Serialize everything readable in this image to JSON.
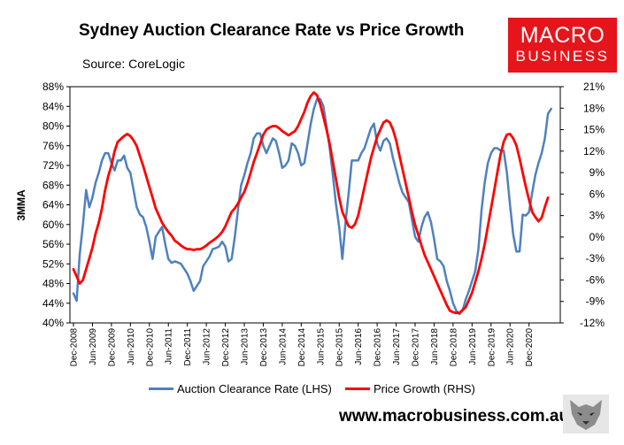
{
  "title": "Sydney Auction Clearance Rate vs Price Growth",
  "source": "Source: CoreLogic",
  "logo": {
    "line1": "MACRO",
    "line2": "BUSINESS"
  },
  "website": "www.macrobusiness.com.au",
  "colors": {
    "lhs_series": "#4f81bd",
    "rhs_series": "#ff0000",
    "logo_bg": "#e5151b"
  },
  "chart_data": {
    "type": "line",
    "title": "Sydney Auction Clearance Rate vs Price Growth",
    "ylabel": "3MMA",
    "ylim": [
      40,
      88
    ],
    "y2lim": [
      -12,
      21
    ],
    "yticks": [
      "40%",
      "44%",
      "48%",
      "52%",
      "56%",
      "60%",
      "64%",
      "68%",
      "72%",
      "76%",
      "80%",
      "84%",
      "88%"
    ],
    "y2ticks": [
      "-12%",
      "-9%",
      "-6%",
      "-3%",
      "0%",
      "3%",
      "6%",
      "9%",
      "12%",
      "15%",
      "18%",
      "21%"
    ],
    "xticks": [
      "Dec-2008",
      "Jun-2009",
      "Dec-2009",
      "Jun-2010",
      "Dec-2010",
      "Jun-2011",
      "Dec-2011",
      "Jun-2012",
      "Dec-2012",
      "Jun-2013",
      "Dec-2013",
      "Jun-2014",
      "Dec-2014",
      "Jun-2015",
      "Dec-2015",
      "Jun-2016",
      "Dec-2016",
      "Jun-2017",
      "Dec-2017",
      "Jun-2018",
      "Dec-2018",
      "Jun-2019",
      "Dec-2019",
      "Jun-2020",
      "Dec-2020"
    ],
    "x_start": "Dec-2008",
    "x_step": "1 month",
    "series": [
      {
        "name": "Auction Clearance Rate (LHS)",
        "axis": "left",
        "values": [
          46,
          44.5,
          54,
          60,
          67,
          63.5,
          65.5,
          68.5,
          70.5,
          73,
          74.5,
          74.5,
          72.5,
          71,
          73,
          73,
          74,
          71.5,
          70.5,
          67,
          63.5,
          62,
          61.5,
          59.5,
          56.5,
          53,
          57.5,
          58.5,
          59.5,
          56,
          53,
          52.2,
          52.5,
          52.3,
          52,
          51,
          50,
          48.5,
          46.5,
          47.5,
          48.5,
          51.5,
          52.5,
          53.5,
          55,
          55.2,
          55.5,
          56.5,
          55.5,
          52.5,
          53,
          57.5,
          63,
          68,
          70,
          72.5,
          74.5,
          77.5,
          78.5,
          78.5,
          76,
          74.5,
          76,
          77.5,
          77,
          74.5,
          71.5,
          72,
          73,
          76.5,
          76,
          74.5,
          72,
          72.5,
          76.5,
          80.5,
          83.5,
          85.5,
          85.5,
          84,
          80,
          75.5,
          70,
          64,
          59.5,
          53,
          60.5,
          66.5,
          73,
          73,
          73,
          74.5,
          75.5,
          77.5,
          79.5,
          80.5,
          76.5,
          75,
          77,
          77.5,
          76.5,
          73.5,
          71,
          68.5,
          66.5,
          65.5,
          64.5,
          61,
          57.5,
          56.5,
          59.5,
          61.5,
          62.5,
          60.5,
          57,
          53,
          52.5,
          51.5,
          48.5,
          46.5,
          44,
          42.5,
          41.8,
          42.5,
          44.8,
          46.5,
          48.5,
          50.5,
          55,
          63,
          68.5,
          72.5,
          74.5,
          75.5,
          75.5,
          75,
          75,
          70.5,
          64,
          58,
          54.5,
          54.5,
          62,
          61.8,
          62.5,
          66.5,
          70,
          72.5,
          74.5,
          77.5,
          82.5,
          83.5
        ]
      },
      {
        "name": "Price Growth (RHS)",
        "axis": "right",
        "values": [
          -4.5,
          -5.5,
          -6.5,
          -6,
          -4.5,
          -3,
          -1.5,
          0.5,
          2,
          4,
          6.5,
          8.5,
          10,
          12,
          13.3,
          13.7,
          14.1,
          14.4,
          14.1,
          13.5,
          12.7,
          11.3,
          10,
          8.5,
          7,
          5.5,
          4,
          3,
          2,
          1.3,
          0.7,
          0.2,
          -0.5,
          -0.8,
          -1.2,
          -1.5,
          -1.7,
          -1.7,
          -1.8,
          -1.7,
          -1.7,
          -1.5,
          -1.2,
          -0.8,
          -0.5,
          -0.2,
          0.2,
          0.7,
          1.5,
          2.5,
          3.5,
          4,
          4.7,
          5.5,
          6.3,
          7.5,
          9,
          10.5,
          11.7,
          13,
          14.3,
          15,
          15.3,
          15.5,
          15.5,
          15.2,
          14.8,
          14.5,
          14.2,
          14.5,
          14.8,
          15.5,
          16.5,
          17.5,
          18.8,
          19.7,
          20.2,
          19.8,
          18.5,
          16.8,
          15,
          13,
          10.5,
          8,
          5.5,
          3.5,
          2.5,
          1.5,
          1.3,
          1.8,
          3,
          5,
          7,
          9,
          11,
          12.5,
          14,
          15,
          16,
          16.3,
          16,
          15,
          13.5,
          11.5,
          9.5,
          7.5,
          5.5,
          3.5,
          1.7,
          0.3,
          -1.2,
          -2.5,
          -3.5,
          -4.5,
          -5.5,
          -6.5,
          -7.5,
          -8.5,
          -9.5,
          -10.3,
          -10.5,
          -10.6,
          -10.6,
          -10.2,
          -9.8,
          -8.8,
          -7.8,
          -6.3,
          -4.8,
          -3,
          -1,
          1.5,
          4,
          6.5,
          9,
          11.5,
          13.3,
          14.3,
          14.4,
          13.8,
          12.8,
          11,
          9,
          7,
          5.2,
          3.5,
          2.8,
          2.2,
          2.7,
          4.2,
          5.5
        ]
      }
    ],
    "legend": [
      "Auction Clearance Rate (LHS)",
      "Price Growth (RHS)"
    ],
    "legend_position": "bottom",
    "grid": false
  }
}
